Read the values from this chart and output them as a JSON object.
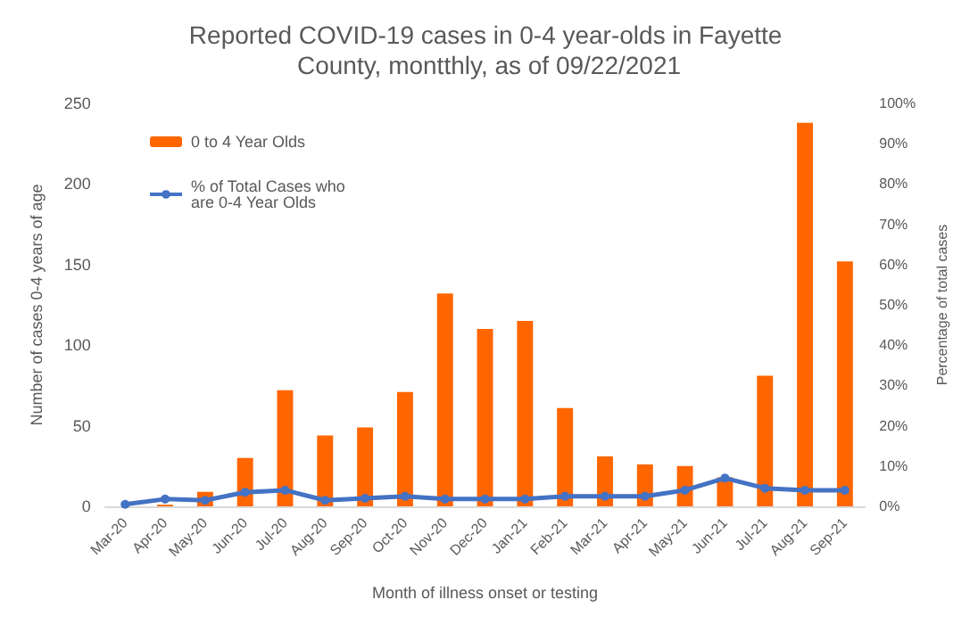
{
  "chart_data": {
    "type": "bar",
    "title": "Reported COVID-19 cases in 0-4 year-olds in Fayette County, montthly, as of 09/22/2021",
    "xlabel": "Month of illness onset or testing",
    "ylabel": "Number of cases 0-4 years of age",
    "y2label": "Percentage of total cases",
    "categories": [
      "Mar-20",
      "Apr-20",
      "May-20",
      "Jun-20",
      "Jul-20",
      "Aug-20",
      "Sep-20",
      "Oct-20",
      "Nov-20",
      "Dec-20",
      "Jan-21",
      "Feb-21",
      "Mar-21",
      "Apr-21",
      "May-21",
      "Jun-21",
      "Jul-21",
      "Aug-21",
      "Sep-21"
    ],
    "series": [
      {
        "name": "0 to 4 Year Olds",
        "color": "#ff6600",
        "values": [
          0,
          1,
          9,
          30,
          72,
          44,
          49,
          71,
          132,
          110,
          115,
          61,
          31,
          26,
          25,
          18,
          81,
          238,
          152
        ]
      },
      {
        "name": "% of Total Cases who are 0-4 Year Olds",
        "type": "line",
        "axis": "y2",
        "color": "#4472c4",
        "marker": "circle",
        "values": [
          0.5,
          1.8,
          1.5,
          3.5,
          4,
          1.5,
          2,
          2.5,
          1.8,
          1.8,
          1.8,
          2.5,
          2.5,
          2.5,
          4,
          7,
          4.5,
          4,
          4
        ]
      }
    ],
    "ylim": [
      0,
      250
    ],
    "yticks": [
      0,
      50,
      100,
      150,
      200,
      250
    ],
    "y2lim": [
      0,
      100
    ],
    "y2ticks": [
      {
        "value": 0,
        "label": "0%"
      },
      {
        "value": 10,
        "label": "10%"
      },
      {
        "value": 20,
        "label": "20%"
      },
      {
        "value": 30,
        "label": "30%"
      },
      {
        "value": 40,
        "label": "40%"
      },
      {
        "value": 50,
        "label": "50%"
      },
      {
        "value": 60,
        "label": "60%"
      },
      {
        "value": 70,
        "label": "70%"
      },
      {
        "value": 80,
        "label": "80%"
      },
      {
        "value": 90,
        "label": "90%"
      },
      {
        "value": 100,
        "label": "100%"
      }
    ],
    "legend": "top left",
    "grid": false
  }
}
